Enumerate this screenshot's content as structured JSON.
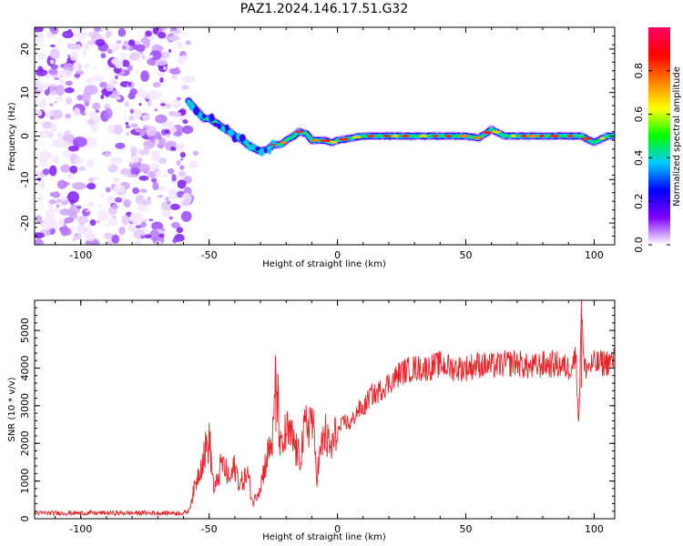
{
  "title": "PAZ1.2024.146.17.51.G32",
  "chart_data": [
    {
      "type": "heatmap",
      "xlabel": "Height of straight line (km)",
      "ylabel": "Frequency (Hz)",
      "xlim": [
        -118,
        108
      ],
      "ylim": [
        -25,
        25
      ],
      "xticks": [
        -100,
        -50,
        0,
        50,
        100
      ],
      "yticks": [
        -20,
        -10,
        0,
        10,
        20
      ],
      "x_ticklabels": [
        "-100",
        "-50",
        "0",
        "50",
        "100"
      ],
      "y_ticklabels": [
        "-20",
        "-10",
        "0",
        "10",
        "20"
      ],
      "noise_region_x": [
        -118,
        -58
      ],
      "signal_ridge": {
        "x": [
          -58,
          -55,
          -52,
          -50,
          -47,
          -45,
          -42,
          -40,
          -37,
          -35,
          -32,
          -30,
          -27,
          -25,
          -22,
          -20,
          -17,
          -15,
          -12,
          -10,
          -7,
          -5,
          -2,
          0,
          5,
          10,
          15,
          20,
          25,
          30,
          35,
          40,
          45,
          50,
          55,
          60,
          65,
          70,
          75,
          80,
          85,
          90,
          95,
          100,
          105,
          108
        ],
        "y": [
          8,
          6,
          4,
          4,
          3,
          2,
          1,
          0,
          -1,
          -2,
          -3,
          -3.5,
          -3,
          -2,
          -2,
          -1,
          0,
          1,
          0.5,
          -1,
          -1,
          -1,
          -1.5,
          -1,
          -0.5,
          0,
          0,
          0,
          0,
          0,
          0,
          0,
          0,
          0,
          -0.5,
          1.5,
          0,
          0,
          0,
          0,
          0,
          0,
          0,
          -1.5,
          0,
          0
        ]
      },
      "colorbar": {
        "label": "Normalized spectral amplitude",
        "range": [
          0,
          1
        ],
        "ticks": [
          0.0,
          0.2,
          0.4,
          0.6,
          0.8
        ],
        "ticklabels": [
          "0.0",
          "0.2",
          "0.4",
          "0.6",
          "0.8"
        ],
        "colors": [
          "#ffffff",
          "#7f00ff",
          "#0000ff",
          "#00c8ff",
          "#00ff00",
          "#ffff00",
          "#ff8000",
          "#ff0000",
          "#ff0066"
        ]
      }
    },
    {
      "type": "line",
      "xlabel": "Height of straight line (km)",
      "ylabel": "SNR (10 * v/v)",
      "xlim": [
        -118,
        108
      ],
      "ylim": [
        0,
        5800
      ],
      "xticks": [
        -100,
        -50,
        0,
        50,
        100
      ],
      "yticks": [
        0,
        1000,
        2000,
        3000,
        4000,
        5000
      ],
      "x_ticklabels": [
        "-100",
        "-50",
        "0",
        "50",
        "100"
      ],
      "y_ticklabels": [
        "0",
        "1000",
        "2000",
        "3000",
        "4000",
        "5000"
      ],
      "color": "#e8262a",
      "series": [
        {
          "x": [
            -118,
            -100,
            -80,
            -60,
            -58,
            -55,
            -53,
            -50,
            -48,
            -45,
            -42,
            -40,
            -38,
            -35,
            -33,
            -30,
            -28,
            -25,
            -24,
            -22,
            -20,
            -17,
            -15,
            -12,
            -10,
            -8,
            -5,
            -3,
            0,
            3,
            5,
            8,
            10,
            13,
            15,
            18,
            20,
            25,
            30,
            35,
            40,
            45,
            50,
            55,
            60,
            65,
            70,
            75,
            80,
            85,
            90,
            93,
            94,
            95,
            96,
            100,
            105,
            108
          ],
          "y": [
            150,
            150,
            150,
            150,
            200,
            1000,
            1500,
            2100,
            700,
            1500,
            1000,
            1400,
            900,
            1200,
            400,
            900,
            1500,
            2200,
            3850,
            1700,
            2300,
            2000,
            1600,
            2500,
            2700,
            1200,
            2300,
            1800,
            2300,
            2600,
            2500,
            2900,
            2900,
            3300,
            3300,
            3500,
            3600,
            3900,
            4000,
            4000,
            4100,
            4000,
            4000,
            4100,
            4050,
            4100,
            4150,
            4000,
            4100,
            4100,
            4000,
            4300,
            2400,
            5800,
            4000,
            4100,
            4150,
            4200
          ]
        }
      ]
    }
  ]
}
